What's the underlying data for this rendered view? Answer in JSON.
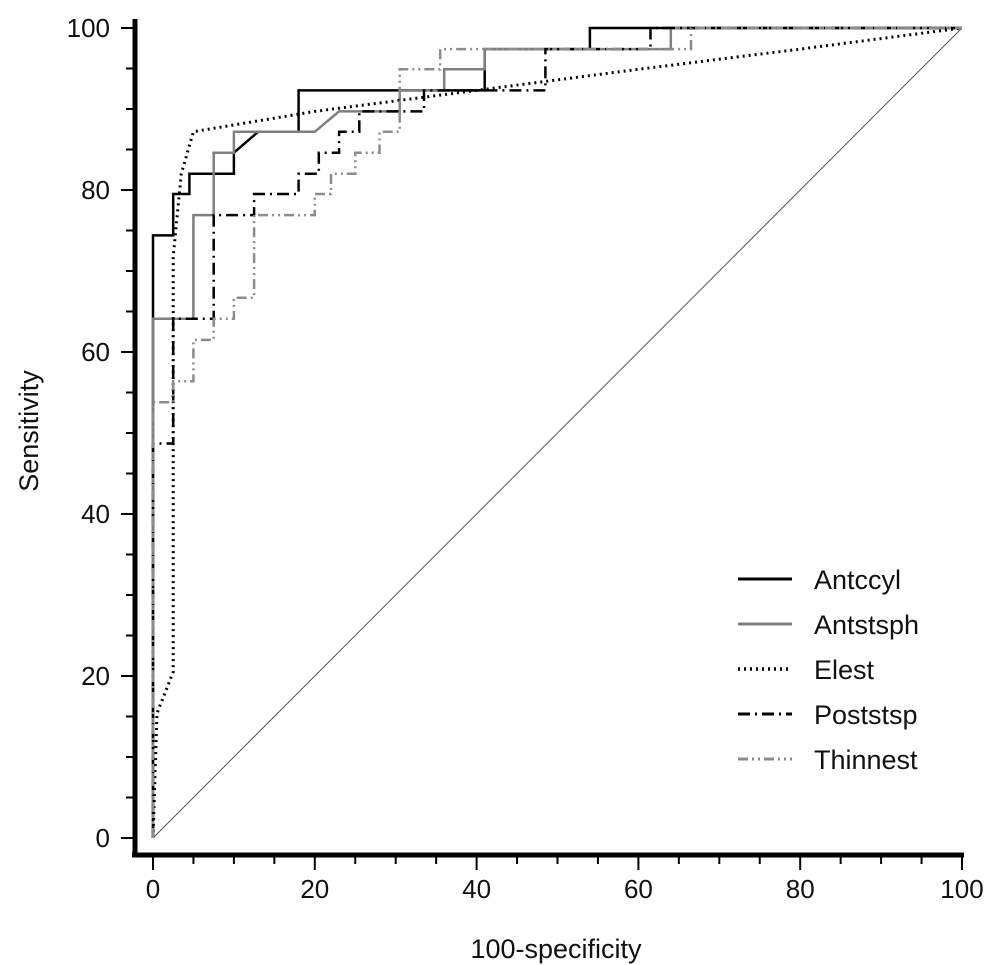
{
  "chart_data": {
    "type": "line",
    "xlabel": "100-specificity",
    "ylabel": "Sensitivity",
    "xlim": [
      0,
      100
    ],
    "ylim": [
      0,
      100
    ],
    "x_ticks": [
      "0",
      "20",
      "40",
      "60",
      "80",
      "100"
    ],
    "y_ticks": [
      "0",
      "20",
      "40",
      "60",
      "80",
      "100"
    ],
    "grid": false,
    "legend_position": "bottom-right",
    "reference_line": {
      "x": [
        0,
        100
      ],
      "y": [
        0,
        100
      ],
      "color": "#555555"
    },
    "series": [
      {
        "name": "Antccyl",
        "style": "solid",
        "color": "#000000",
        "x": [
          0,
          0,
          2.5,
          2.5,
          4.5,
          4.5,
          7.5,
          7.5,
          10,
          10,
          13,
          13,
          18,
          18,
          41,
          41,
          54,
          54,
          100
        ],
        "y": [
          0,
          74.4,
          74.4,
          79.5,
          79.5,
          82,
          82,
          82,
          82,
          84.6,
          87.2,
          87.2,
          87.2,
          92.3,
          92.3,
          97.4,
          97.4,
          100,
          100
        ]
      },
      {
        "name": "Antstsph",
        "style": "solid",
        "color": "#808080",
        "x": [
          0,
          0,
          5,
          5,
          7.5,
          7.5,
          10,
          10,
          20,
          20,
          23,
          23,
          30.5,
          30.5,
          36,
          36,
          41,
          41,
          64,
          64,
          100
        ],
        "y": [
          0,
          64.1,
          64.1,
          76.9,
          76.9,
          84.6,
          84.6,
          87.2,
          87.2,
          87.2,
          89.7,
          89.7,
          89.7,
          92.3,
          92.3,
          94.9,
          94.9,
          97.4,
          97.4,
          100,
          100
        ]
      },
      {
        "name": "Elest",
        "style": "dotted",
        "color": "#000000",
        "x": [
          0,
          0.5,
          2.5,
          2.5,
          3.5,
          5,
          20,
          40,
          60,
          80,
          100
        ],
        "y": [
          0,
          15.4,
          20.5,
          71.8,
          82,
          87.2,
          89.7,
          92.3,
          94.9,
          97.4,
          100
        ]
      },
      {
        "name": "Poststsp",
        "style": "dashdot",
        "color": "#000000",
        "x": [
          0,
          0,
          2.5,
          2.5,
          7.5,
          7.5,
          12.5,
          12.5,
          18,
          18,
          20.5,
          20.5,
          23,
          23,
          25.5,
          25.5,
          33.5,
          33.5,
          36,
          36,
          41,
          41,
          48.5,
          48.5,
          61.5,
          61.5,
          100
        ],
        "y": [
          0,
          48.7,
          48.7,
          64.1,
          64.1,
          76.9,
          76.9,
          79.5,
          79.5,
          82,
          82,
          84.6,
          84.6,
          87.2,
          87.2,
          89.7,
          89.7,
          92.3,
          92.3,
          92.3,
          92.3,
          92.3,
          92.3,
          97.4,
          97.4,
          100,
          100
        ]
      },
      {
        "name": "Thinnest",
        "style": "dashdotdot",
        "color": "#8c8c8c",
        "x": [
          0,
          0,
          2.5,
          2.5,
          5,
          5,
          7.5,
          7.5,
          10,
          10,
          12.5,
          12.5,
          20,
          20,
          22,
          22,
          25,
          25,
          28,
          28,
          30.5,
          30.5,
          35.5,
          35.5,
          38.5,
          38.5,
          46,
          46,
          66.5,
          66.5,
          100
        ],
        "y": [
          0,
          53.8,
          53.8,
          56.4,
          56.4,
          61.5,
          61.5,
          64.1,
          64.1,
          66.7,
          66.7,
          76.9,
          76.9,
          79.5,
          79.5,
          82,
          82,
          84.6,
          84.6,
          87.2,
          87.2,
          94.9,
          94.9,
          97.4,
          97.4,
          97.4,
          97.4,
          97.4,
          97.4,
          100,
          100
        ]
      }
    ]
  }
}
